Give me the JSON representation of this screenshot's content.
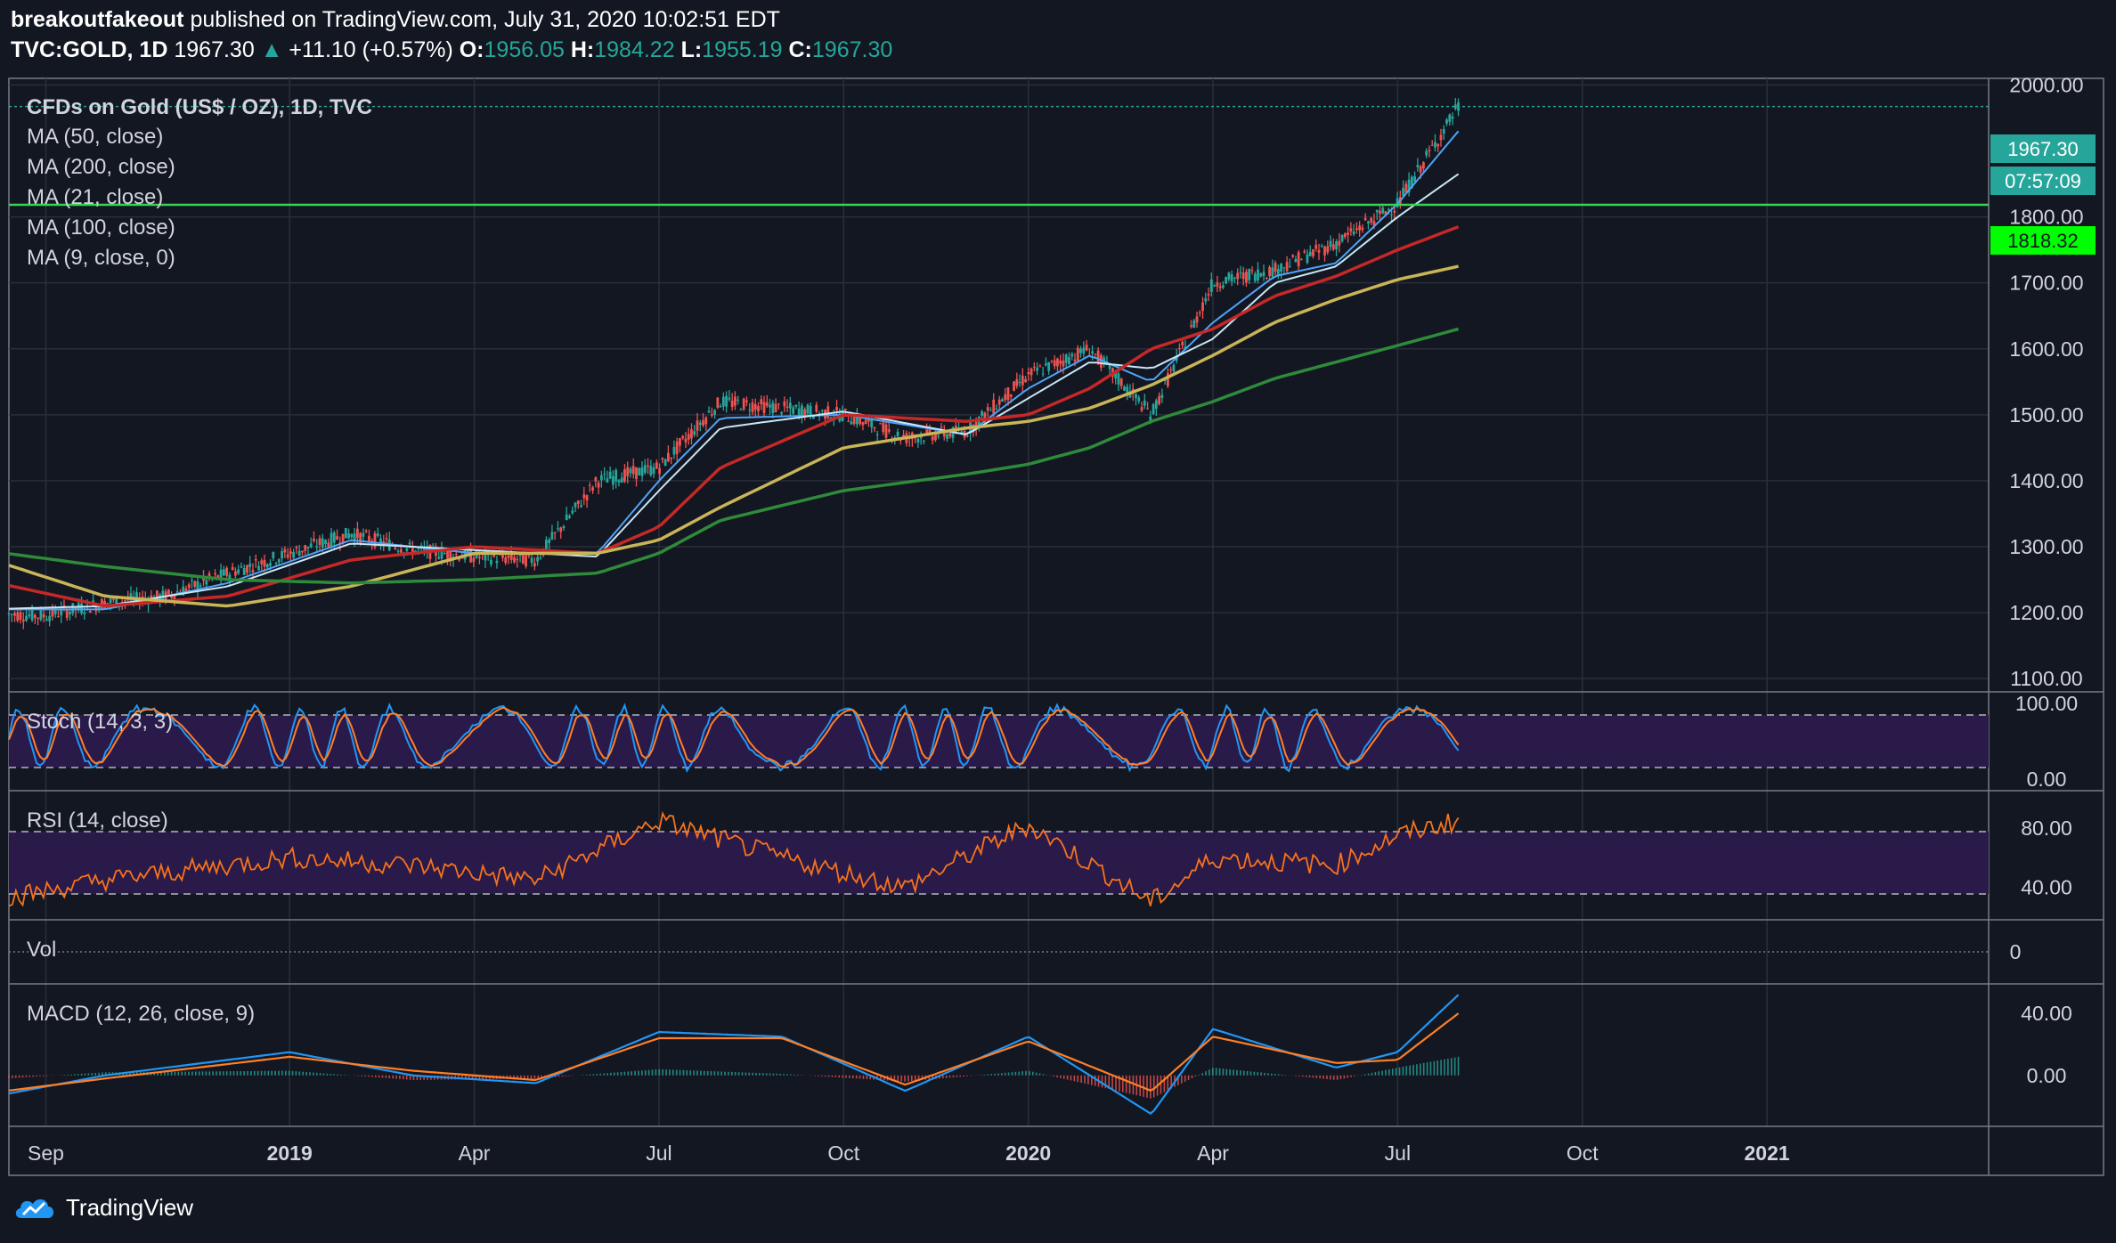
{
  "header": {
    "author": "breakoutfakeout",
    "published": "published on TradingView.com, July 31, 2020 10:02:51 EDT",
    "symbol": "TVC:GOLD, 1D",
    "last": "1967.30",
    "change_arrow": "▲",
    "change": "+11.10 (+0.57%)",
    "o_label": "O:",
    "o": "1956.05",
    "h_label": "H:",
    "h": "1984.22",
    "l_label": "L:",
    "l": "1955.19",
    "c_label": "C:",
    "c": "1967.30"
  },
  "legend": {
    "instrument": "CFDs on Gold (US$ / OZ), 1D, TVC",
    "ma50": "MA (50, close)",
    "ma200": "MA (200, close)",
    "ma21": "MA (21, close)",
    "ma100": "MA (100, close)",
    "ma9": "MA (9, close, 0)",
    "stoch": "Stoch (14, 3, 3)",
    "rsi": "RSI (14, close)",
    "vol": "Vol",
    "macd": "MACD (12, 26, close, 9)"
  },
  "price_badges": {
    "last_price": "1967.30",
    "countdown": "07:57:09",
    "hline_price": "1818.32"
  },
  "footer": {
    "brand": "TradingView"
  },
  "colors": {
    "background": "#131722",
    "grid": "#2a2e39",
    "up": "#26a69a",
    "down": "#ef5350",
    "ma9": "#4fa3f7",
    "ma21": "#c8e6f5",
    "ma50": "#c62828",
    "ma100": "#c9b458",
    "ma200": "#2e8b3a",
    "hline": "#39d353",
    "hline_badge": "#00ff00",
    "rsi": "#f7731b",
    "stoch_k": "#2196f3",
    "stoch_d": "#ff7f26",
    "band": "#2a1a4a",
    "macd": "#2196f3",
    "signal": "#ff7f26"
  },
  "chart_data": {
    "type": "line",
    "title": "CFDs on Gold (US$ / OZ), 1D, TVC",
    "x_tick_labels": [
      "Sep",
      "2019",
      "Apr",
      "Jul",
      "Oct",
      "2020",
      "Apr",
      "Jul",
      "Oct",
      "2021"
    ],
    "x_tick_bold": [
      false,
      true,
      false,
      false,
      false,
      true,
      false,
      false,
      false,
      true
    ],
    "price_axis": {
      "ticks": [
        "1100.00",
        "1200.00",
        "1300.00",
        "1400.00",
        "1500.00",
        "1600.00",
        "1700.00",
        "1800.00",
        "2000.00"
      ],
      "range": [
        1080,
        2010
      ]
    },
    "horizontal_line": 1818.32,
    "last_price": 1967.3,
    "series": [
      {
        "name": "CFDs on Gold (US$ / OZ), 1D, TVC",
        "type": "price",
        "x": [
          "2018-08",
          "2018-09",
          "2018-10",
          "2018-11",
          "2018-12",
          "2019-01",
          "2019-02",
          "2019-03",
          "2019-04",
          "2019-05",
          "2019-06",
          "2019-07",
          "2019-08",
          "2019-09",
          "2019-10",
          "2019-11",
          "2019-12",
          "2020-01",
          "2020-02",
          "2020-03",
          "2020-04",
          "2020-05",
          "2020-06",
          "2020-07",
          "2020-07-31"
        ],
        "values": [
          1200,
          1195,
          1215,
          1225,
          1260,
          1290,
          1320,
          1295,
          1285,
          1280,
          1400,
          1420,
          1520,
          1510,
          1500,
          1465,
          1475,
          1560,
          1600,
          1500,
          1700,
          1720,
          1760,
          1820,
          1967.3
        ]
      },
      {
        "name": "MA (9, close, 0)",
        "x": [
          "2018-08",
          "2018-10",
          "2018-12",
          "2019-02",
          "2019-04",
          "2019-06",
          "2019-07",
          "2019-08",
          "2019-10",
          "2019-12",
          "2020-01",
          "2020-02",
          "2020-03",
          "2020-04",
          "2020-05",
          "2020-06",
          "2020-07",
          "2020-07-31"
        ],
        "values": [
          1205,
          1205,
          1245,
          1310,
          1290,
          1290,
          1400,
          1495,
          1500,
          1470,
          1540,
          1590,
          1550,
          1640,
          1710,
          1730,
          1820,
          1930
        ]
      },
      {
        "name": "MA (21, close)",
        "x": [
          "2018-08",
          "2018-10",
          "2018-12",
          "2019-02",
          "2019-04",
          "2019-06",
          "2019-07",
          "2019-08",
          "2019-10",
          "2019-12",
          "2020-01",
          "2020-02",
          "2020-03",
          "2020-04",
          "2020-05",
          "2020-06",
          "2020-07",
          "2020-07-31"
        ],
        "values": [
          1205,
          1210,
          1240,
          1305,
          1295,
          1285,
          1385,
          1480,
          1505,
          1470,
          1525,
          1580,
          1570,
          1615,
          1700,
          1725,
          1800,
          1865
        ]
      },
      {
        "name": "MA (50, close)",
        "x": [
          "2018-08",
          "2018-10",
          "2018-12",
          "2019-02",
          "2019-04",
          "2019-06",
          "2019-07",
          "2019-08",
          "2019-10",
          "2019-12",
          "2020-01",
          "2020-02",
          "2020-03",
          "2020-04",
          "2020-05",
          "2020-06",
          "2020-07",
          "2020-07-31"
        ],
        "values": [
          1250,
          1210,
          1225,
          1280,
          1300,
          1290,
          1330,
          1420,
          1500,
          1490,
          1500,
          1540,
          1600,
          1630,
          1680,
          1710,
          1750,
          1785
        ]
      },
      {
        "name": "MA (100, close)",
        "x": [
          "2018-08",
          "2018-10",
          "2018-12",
          "2019-02",
          "2019-04",
          "2019-06",
          "2019-07",
          "2019-08",
          "2019-10",
          "2019-12",
          "2020-01",
          "2020-02",
          "2020-03",
          "2020-04",
          "2020-05",
          "2020-06",
          "2020-07",
          "2020-07-31"
        ],
        "values": [
          1285,
          1225,
          1210,
          1240,
          1290,
          1290,
          1310,
          1360,
          1450,
          1480,
          1490,
          1510,
          1545,
          1590,
          1640,
          1675,
          1705,
          1725
        ]
      },
      {
        "name": "MA (200, close)",
        "x": [
          "2018-08",
          "2018-10",
          "2018-12",
          "2019-02",
          "2019-04",
          "2019-06",
          "2019-07",
          "2019-08",
          "2019-10",
          "2019-12",
          "2020-01",
          "2020-02",
          "2020-03",
          "2020-04",
          "2020-05",
          "2020-06",
          "2020-07",
          "2020-07-31"
        ],
        "values": [
          1295,
          1270,
          1250,
          1245,
          1250,
          1260,
          1290,
          1340,
          1385,
          1410,
          1425,
          1450,
          1490,
          1520,
          1555,
          1580,
          1605,
          1630
        ]
      }
    ],
    "panes": [
      {
        "name": "Stoch (14, 3, 3)",
        "ticks": [
          "100.00",
          "0.00"
        ],
        "range": [
          0,
          100
        ],
        "band": [
          20,
          80
        ]
      },
      {
        "name": "RSI (14, close)",
        "ticks": [
          "80.00",
          "40.00"
        ],
        "range": [
          20,
          95
        ],
        "band": [
          30,
          70
        ],
        "x": [
          "2018-08",
          "2018-10",
          "2019-01",
          "2019-03",
          "2019-05",
          "2019-07",
          "2019-09",
          "2019-11",
          "2020-01",
          "2020-03",
          "2020-04",
          "2020-06",
          "2020-07",
          "2020-07-31"
        ],
        "values": [
          30,
          45,
          60,
          55,
          45,
          85,
          60,
          40,
          82,
          30,
          60,
          55,
          75,
          85
        ]
      },
      {
        "name": "Vol",
        "ticks": [
          "0"
        ]
      },
      {
        "name": "MACD (12, 26, close, 9)",
        "ticks": [
          "40.00",
          "0.00"
        ],
        "range": [
          -30,
          55
        ],
        "x": [
          "2018-08",
          "2018-10",
          "2019-01",
          "2019-03",
          "2019-05",
          "2019-07",
          "2019-09",
          "2019-11",
          "2020-01",
          "2020-03",
          "2020-04",
          "2020-06",
          "2020-07",
          "2020-07-31"
        ],
        "macd": [
          -15,
          0,
          15,
          0,
          -5,
          28,
          25,
          -10,
          25,
          -25,
          30,
          5,
          15,
          52
        ],
        "signal": [
          -12,
          -2,
          12,
          3,
          -3,
          24,
          24,
          -6,
          22,
          -10,
          25,
          8,
          10,
          40
        ]
      }
    ]
  }
}
